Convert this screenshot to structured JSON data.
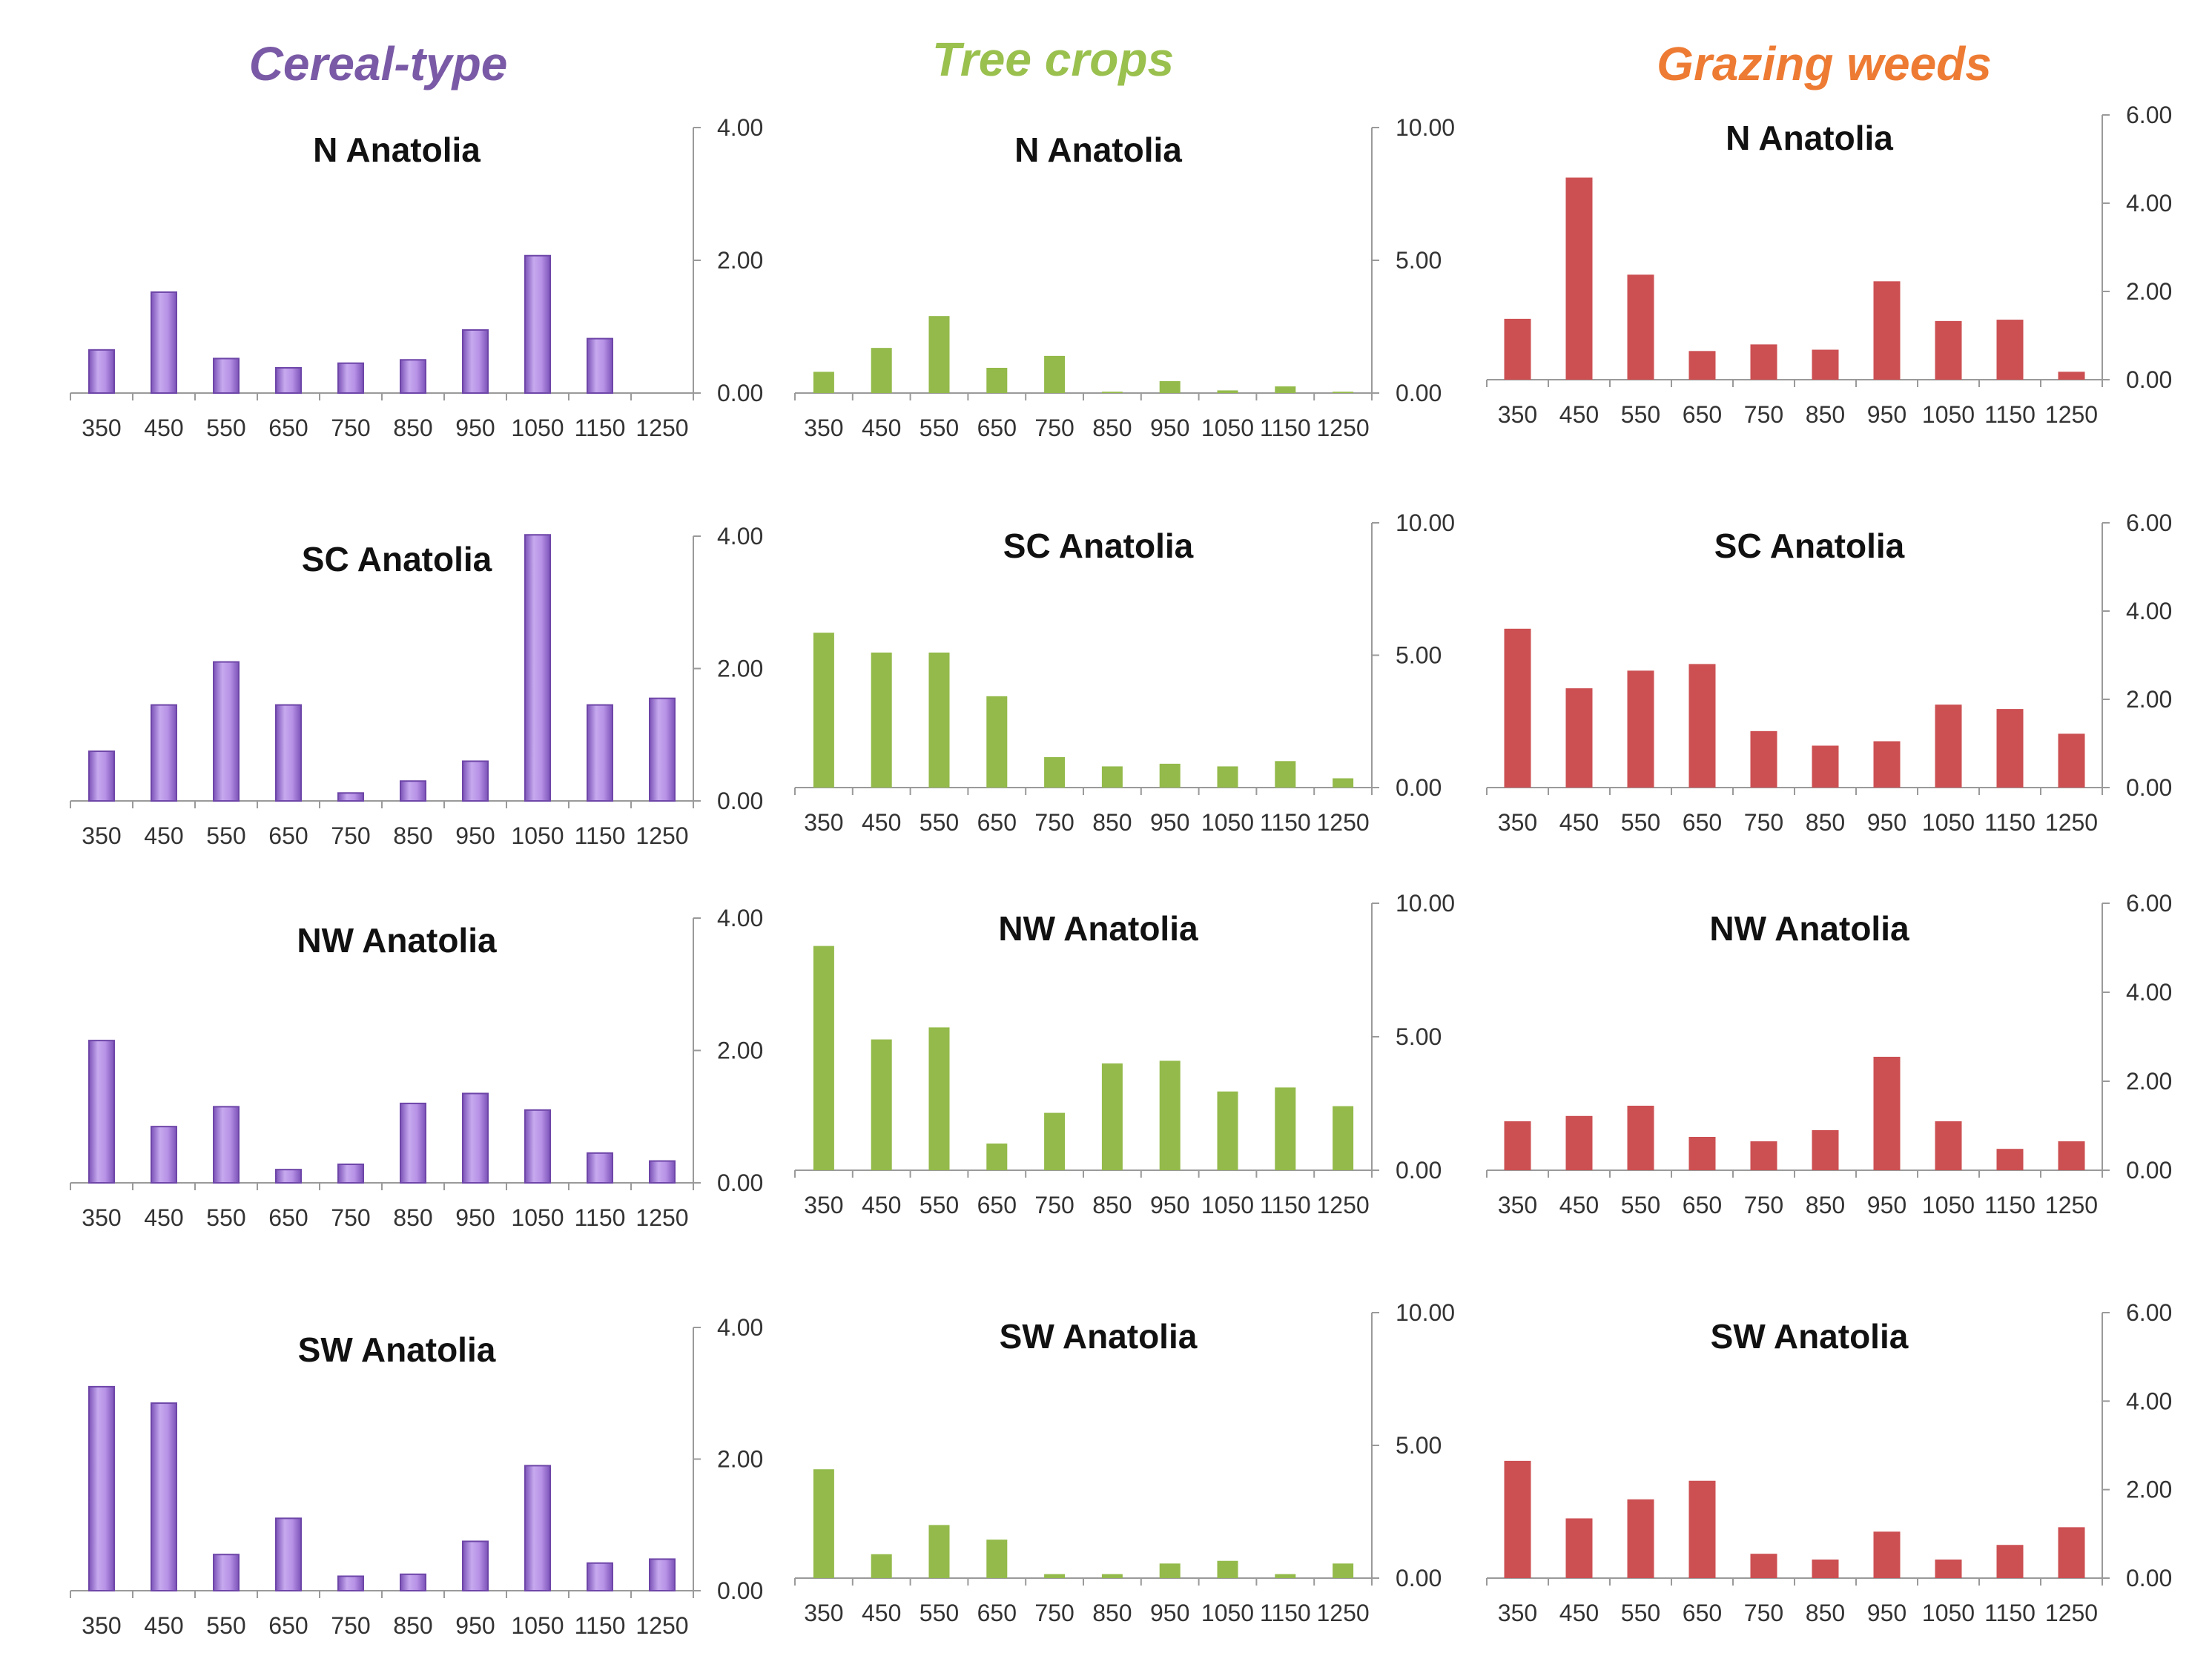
{
  "colors": {
    "cereal": "#9b6fd1",
    "cereal_stroke": "#6e46a8",
    "tree": "#93ba4a",
    "grazing": "#cc4f52",
    "cereal_title": "#7a5aa6",
    "tree_title": "#9ac04e",
    "grazing_title": "#ee7b33"
  },
  "column_titles": [
    "Cereal-type",
    "Tree crops",
    "Grazing weeds"
  ],
  "chart_data": [
    {
      "type": "bar",
      "group": "Cereal-type",
      "title": "N Anatolia",
      "categories": [
        "350",
        "450",
        "550",
        "650",
        "750",
        "850",
        "950",
        "1050",
        "1150",
        "1250"
      ],
      "values": [
        0.65,
        1.52,
        0.52,
        0.38,
        0.45,
        0.5,
        0.95,
        2.07,
        0.82,
        0.0
      ],
      "ylim": [
        0,
        4
      ],
      "yticks": [
        "0.00",
        "2.00",
        "4.00"
      ]
    },
    {
      "type": "bar",
      "group": "Tree crops",
      "title": "N Anatolia",
      "categories": [
        "350",
        "450",
        "550",
        "650",
        "750",
        "850",
        "950",
        "1050",
        "1150",
        "1250"
      ],
      "values": [
        0.8,
        1.7,
        2.9,
        0.95,
        1.4,
        0.05,
        0.45,
        0.1,
        0.25,
        0.05
      ],
      "ylim": [
        0,
        10
      ],
      "yticks": [
        "0.00",
        "5.00",
        "10.00"
      ]
    },
    {
      "type": "bar",
      "group": "Grazing weeds",
      "title": "N Anatolia",
      "categories": [
        "350",
        "450",
        "550",
        "650",
        "750",
        "850",
        "950",
        "1050",
        "1150",
        "1250"
      ],
      "values": [
        1.38,
        4.58,
        2.38,
        0.65,
        0.8,
        0.68,
        2.23,
        1.33,
        1.36,
        0.18
      ],
      "ylim": [
        0,
        6
      ],
      "yticks": [
        "0.00",
        "2.00",
        "4.00",
        "6.00"
      ]
    },
    {
      "type": "bar",
      "group": "Cereal-type",
      "title": "SC Anatolia",
      "categories": [
        "350",
        "450",
        "550",
        "650",
        "750",
        "850",
        "950",
        "1050",
        "1150",
        "1250"
      ],
      "values": [
        0.75,
        1.45,
        2.1,
        1.45,
        0.12,
        0.3,
        0.6,
        4.02,
        1.45,
        1.55
      ],
      "ylim": [
        0,
        4
      ],
      "yticks": [
        "0.00",
        "2.00",
        "4.00"
      ]
    },
    {
      "type": "bar",
      "group": "Tree crops",
      "title": "SC Anatolia",
      "categories": [
        "350",
        "450",
        "550",
        "650",
        "750",
        "850",
        "950",
        "1050",
        "1150",
        "1250"
      ],
      "values": [
        5.85,
        5.1,
        5.1,
        3.45,
        1.15,
        0.8,
        0.9,
        0.8,
        1.0,
        0.35
      ],
      "ylim": [
        0,
        10
      ],
      "yticks": [
        "0.00",
        "5.00",
        "10.00"
      ]
    },
    {
      "type": "bar",
      "group": "Grazing weeds",
      "title": "SC Anatolia",
      "categories": [
        "350",
        "450",
        "550",
        "650",
        "750",
        "850",
        "950",
        "1050",
        "1150",
        "1250"
      ],
      "values": [
        3.6,
        2.25,
        2.65,
        2.8,
        1.28,
        0.95,
        1.05,
        1.88,
        1.78,
        1.22
      ],
      "ylim": [
        0,
        6
      ],
      "yticks": [
        "0.00",
        "2.00",
        "4.00",
        "6.00"
      ]
    },
    {
      "type": "bar",
      "group": "Cereal-type",
      "title": "NW Anatolia",
      "categories": [
        "350",
        "450",
        "550",
        "650",
        "750",
        "850",
        "950",
        "1050",
        "1150",
        "1250"
      ],
      "values": [
        2.15,
        0.85,
        1.15,
        0.2,
        0.28,
        1.2,
        1.35,
        1.1,
        0.45,
        0.33
      ],
      "ylim": [
        0,
        4
      ],
      "yticks": [
        "0.00",
        "2.00",
        "4.00"
      ]
    },
    {
      "type": "bar",
      "group": "Tree crops",
      "title": "NW Anatolia",
      "categories": [
        "350",
        "450",
        "550",
        "650",
        "750",
        "850",
        "950",
        "1050",
        "1150",
        "1250"
      ],
      "values": [
        8.4,
        4.9,
        5.35,
        1.0,
        2.15,
        4.0,
        4.1,
        2.95,
        3.1,
        2.4
      ],
      "ylim": [
        0,
        10
      ],
      "yticks": [
        "0.00",
        "5.00",
        "10.00"
      ]
    },
    {
      "type": "bar",
      "group": "Grazing weeds",
      "title": "NW Anatolia",
      "categories": [
        "350",
        "450",
        "550",
        "650",
        "750",
        "850",
        "950",
        "1050",
        "1150",
        "1250"
      ],
      "values": [
        1.1,
        1.22,
        1.45,
        0.75,
        0.65,
        0.9,
        2.55,
        1.1,
        0.48,
        0.65
      ],
      "ylim": [
        0,
        6
      ],
      "yticks": [
        "0.00",
        "2.00",
        "4.00",
        "6.00"
      ]
    },
    {
      "type": "bar",
      "group": "Cereal-type",
      "title": "SW Anatolia",
      "categories": [
        "350",
        "450",
        "550",
        "650",
        "750",
        "850",
        "950",
        "1050",
        "1150",
        "1250"
      ],
      "values": [
        3.1,
        2.85,
        0.55,
        1.1,
        0.22,
        0.25,
        0.75,
        1.9,
        0.42,
        0.48
      ],
      "ylim": [
        0,
        4
      ],
      "yticks": [
        "0.00",
        "2.00",
        "4.00"
      ]
    },
    {
      "type": "bar",
      "group": "Tree crops",
      "title": "SW Anatolia",
      "categories": [
        "350",
        "450",
        "550",
        "650",
        "750",
        "850",
        "950",
        "1050",
        "1150",
        "1250"
      ],
      "values": [
        4.1,
        0.9,
        2.0,
        1.45,
        0.15,
        0.15,
        0.55,
        0.65,
        0.15,
        0.55
      ],
      "ylim": [
        0,
        10
      ],
      "yticks": [
        "0.00",
        "5.00",
        "10.00"
      ]
    },
    {
      "type": "bar",
      "group": "Grazing weeds",
      "title": "SW Anatolia",
      "categories": [
        "350",
        "450",
        "550",
        "650",
        "750",
        "850",
        "950",
        "1050",
        "1150",
        "1250"
      ],
      "values": [
        2.65,
        1.35,
        1.78,
        2.2,
        0.55,
        0.42,
        1.05,
        0.42,
        0.75,
        1.15
      ],
      "ylim": [
        0,
        6
      ],
      "yticks": [
        "0.00",
        "2.00",
        "4.00",
        "6.00"
      ]
    }
  ]
}
